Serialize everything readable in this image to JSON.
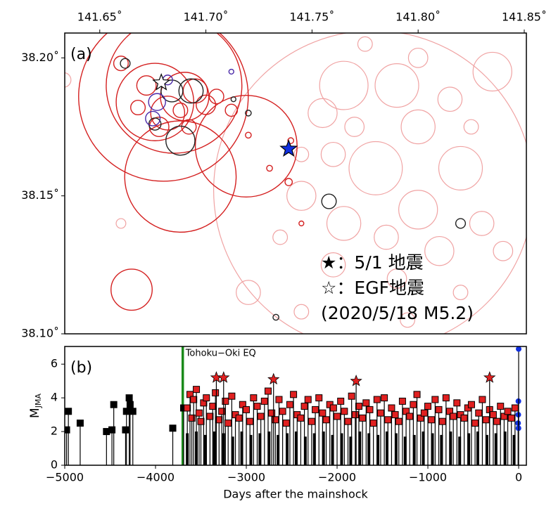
{
  "chart_data": [
    {
      "type": "map",
      "panel_label": "(a)",
      "xlim": [
        141.6335,
        141.851
      ],
      "ylim": [
        38.1,
        38.209
      ],
      "xticks": [
        {
          "value": 141.65,
          "label": "141.65˚"
        },
        {
          "value": 141.7,
          "label": "141.70˚"
        },
        {
          "value": 141.75,
          "label": "141.75˚"
        },
        {
          "value": 141.8,
          "label": "141.80˚"
        },
        {
          "value": 141.85,
          "label": "141.85˚"
        }
      ],
      "yticks": [
        {
          "value": 38.1,
          "label": "38.10˚"
        },
        {
          "value": 38.15,
          "label": "38.15˚"
        },
        {
          "value": 38.2,
          "label": "38.20˚"
        }
      ],
      "series": [
        {
          "color": "#f0a3a3",
          "x": [
            141.779,
            141.835,
            141.765,
            141.79,
            141.755,
            141.8,
            141.76,
            141.82,
            141.78,
            141.745,
            141.8,
            141.765,
            141.83,
            141.81,
            141.76,
            141.79,
            141.84,
            141.72,
            141.745,
            141.66,
            141.8,
            141.775,
            141.745,
            141.815,
            141.77,
            141.825,
            141.785,
            141.735,
            141.795,
            141.82,
            141.633
          ],
          "y": [
            38.152,
            38.195,
            38.19,
            38.19,
            38.18,
            38.175,
            38.165,
            38.16,
            38.16,
            38.15,
            38.145,
            38.14,
            38.14,
            38.13,
            38.125,
            38.12,
            38.13,
            38.115,
            38.108,
            38.14,
            38.2,
            38.205,
            38.165,
            38.185,
            38.175,
            38.175,
            38.135,
            38.135,
            38.105,
            38.115,
            38.192
          ],
          "sizes": [
            6.6,
            0.8,
            1.0,
            0.9,
            0.6,
            0.7,
            0.5,
            0.9,
            1.1,
            0.6,
            0.8,
            0.7,
            0.5,
            0.6,
            0.5,
            0.4,
            0.4,
            0.5,
            0.3,
            0.2,
            0.4,
            0.3,
            0.3,
            0.5,
            0.4,
            0.3,
            0.5,
            0.3,
            0.3,
            0.3,
            0.3
          ]
        },
        {
          "color": "#d42020",
          "x": [
            141.68,
            141.688,
            141.719,
            141.685,
            141.676,
            141.69,
            141.682,
            141.695,
            141.672,
            141.7,
            141.678,
            141.705,
            141.688,
            141.668,
            141.712,
            141.692,
            141.66,
            141.665,
            141.739,
            141.73,
            141.74,
            141.745,
            141.72
          ],
          "y": [
            38.186,
            38.157,
            38.168,
            38.19,
            38.184,
            38.186,
            38.18,
            38.188,
            38.19,
            38.183,
            38.175,
            38.186,
            38.181,
            38.182,
            38.181,
            38.175,
            38.198,
            38.116,
            38.155,
            38.16,
            38.17,
            38.14,
            38.172
          ],
          "sizes": [
            3.5,
            2.3,
            2.1,
            2.8,
            1.6,
            1.0,
            0.7,
            0.5,
            0.4,
            0.4,
            0.4,
            0.3,
            0.3,
            0.3,
            0.25,
            0.3,
            0.3,
            0.85,
            0.15,
            0.12,
            0.12,
            0.1,
            0.12
          ]
        },
        {
          "color": "#222222",
          "x": [
            141.688,
            141.684,
            141.693,
            141.662,
            141.713,
            141.676,
            141.72,
            141.82,
            141.733,
            141.758
          ],
          "y": [
            38.17,
            38.188,
            38.188,
            38.198,
            38.185,
            38.176,
            38.18,
            38.14,
            38.106,
            38.148
          ],
          "sizes": [
            0.6,
            0.45,
            0.5,
            0.2,
            0.1,
            0.25,
            0.12,
            0.2,
            0.12,
            0.3
          ]
        },
        {
          "color": "#4b2aa8",
          "x": [
            141.677,
            141.675,
            141.682,
            141.712
          ],
          "y": [
            38.184,
            38.178,
            38.192,
            38.195
          ],
          "sizes": [
            0.35,
            0.3,
            0.2,
            0.1
          ]
        }
      ],
      "stars": [
        {
          "x": 141.679,
          "y": 38.191,
          "color": "#ffffff"
        },
        {
          "x": 141.739,
          "y": 38.167,
          "color": "#1030e0"
        }
      ],
      "legend": [
        "★：5/1 地震",
        "☆：EGF地震",
        "(2020/5/18 M5.2)"
      ]
    },
    {
      "type": "stem",
      "panel_label": "(b)",
      "xlabel": "Days after the mainshock",
      "ylabel": "M",
      "ylabel_sub": "JMA",
      "xlim": [
        -5000,
        85
      ],
      "ylim": [
        0,
        7.05
      ],
      "xticks": [
        {
          "value": -5000,
          "label": "−5000"
        },
        {
          "value": -4000,
          "label": "−4000"
        },
        {
          "value": -3000,
          "label": "−3000"
        },
        {
          "value": -2000,
          "label": "−2000"
        },
        {
          "value": -1000,
          "label": "−1000"
        },
        0
      ],
      "yticks": [
        0,
        2,
        4,
        6
      ],
      "event": {
        "x": -3700,
        "label": "Tohoku−Oki EQ",
        "color": "#1a8a1a"
      },
      "series": [
        {
          "color": "#000000",
          "marker": "none",
          "x": [
            -3650,
            -3550,
            -3450,
            -3350,
            -3250,
            -3150,
            -3050,
            -2950,
            -2850,
            -2750,
            -2650,
            -2550,
            -2450,
            -2350,
            -2250,
            -2150,
            -2050,
            -1950,
            -1850,
            -1750,
            -1650,
            -1550,
            -1450,
            -1350,
            -1250,
            -1150,
            -1050,
            -950,
            -850,
            -750,
            -650,
            -550,
            -450,
            -350,
            -250,
            -150,
            -50
          ],
          "values": [
            1.9,
            2.0,
            1.8,
            2.0,
            1.9,
            1.7,
            2.0,
            1.8,
            1.9,
            2.0,
            1.8,
            1.9,
            2.0,
            1.7,
            1.9,
            2.0,
            1.8,
            1.9,
            1.7,
            2.0,
            1.9,
            1.8,
            2.0,
            1.9,
            1.7,
            1.8,
            2.0,
            1.9,
            1.8,
            2.0,
            1.7,
            1.9,
            2.0,
            1.8,
            1.9,
            2.0,
            1.8
          ]
        },
        {
          "color": "#000000",
          "marker": "square",
          "x": [
            -4980,
            -4960,
            -4830,
            -4540,
            -4480,
            -4460,
            -4330,
            -4320,
            -4290,
            -4280,
            -4250,
            -3810,
            -3690
          ],
          "values": [
            2.1,
            3.2,
            2.5,
            2.0,
            2.1,
            3.6,
            2.1,
            3.2,
            4.0,
            3.6,
            3.2,
            2.2,
            3.4
          ]
        },
        {
          "color": "#e02020",
          "marker": "square",
          "x": [
            -3650,
            -3620,
            -3600,
            -3580,
            -3550,
            -3520,
            -3500,
            -3470,
            -3440,
            -3400,
            -3370,
            -3340,
            -3300,
            -3270,
            -3230,
            -3200,
            -3160,
            -3120,
            -3080,
            -3040,
            -3000,
            -2960,
            -2920,
            -2880,
            -2840,
            -2800,
            -2760,
            -2720,
            -2680,
            -2640,
            -2600,
            -2560,
            -2520,
            -2480,
            -2440,
            -2400,
            -2360,
            -2320,
            -2280,
            -2240,
            -2200,
            -2160,
            -2120,
            -2080,
            -2040,
            -2000,
            -1960,
            -1920,
            -1880,
            -1840,
            -1800,
            -1760,
            -1720,
            -1680,
            -1640,
            -1600,
            -1560,
            -1520,
            -1480,
            -1440,
            -1400,
            -1360,
            -1320,
            -1280,
            -1240,
            -1200,
            -1160,
            -1120,
            -1080,
            -1040,
            -1000,
            -960,
            -920,
            -880,
            -840,
            -800,
            -760,
            -720,
            -680,
            -640,
            -600,
            -560,
            -520,
            -480,
            -440,
            -400,
            -360,
            -320,
            -280,
            -240,
            -200,
            -160,
            -120,
            -80,
            -40
          ],
          "values": [
            3.4,
            4.2,
            2.8,
            3.9,
            4.5,
            3.1,
            2.6,
            3.7,
            4.0,
            2.9,
            3.5,
            4.3,
            2.7,
            3.2,
            3.8,
            2.5,
            4.1,
            3.0,
            2.8,
            3.6,
            3.3,
            2.6,
            4.0,
            3.5,
            2.9,
            3.8,
            4.4,
            3.1,
            2.7,
            3.9,
            3.2,
            2.5,
            3.6,
            4.2,
            3.0,
            2.8,
            3.5,
            3.9,
            2.6,
            3.3,
            4.0,
            3.1,
            2.7,
            3.6,
            3.4,
            2.9,
            3.8,
            3.2,
            2.6,
            4.1,
            3.0,
            3.5,
            2.8,
            3.7,
            3.3,
            2.5,
            3.9,
            3.1,
            4.0,
            2.7,
            3.4,
            3.0,
            2.6,
            3.8,
            3.2,
            2.9,
            3.6,
            4.2,
            2.8,
            3.1,
            3.5,
            2.7,
            3.9,
            3.3,
            2.6,
            4.0,
            3.2,
            2.9,
            3.7,
            3.0,
            2.8,
            3.4,
            3.6,
            2.5,
            3.1,
            3.9,
            2.7,
            3.3,
            3.0,
            2.6,
            3.5,
            2.9,
            3.2,
            2.8,
            3.4
          ]
        },
        {
          "color": "#e02020",
          "marker": "star",
          "x": [
            -3330,
            -3250,
            -2700,
            -1790,
            -320
          ],
          "values": [
            5.2,
            5.2,
            5.1,
            5.0,
            5.2
          ]
        },
        {
          "color": "#1030e0",
          "marker": "circle",
          "x": [
            -6,
            -4,
            -3,
            -2,
            0
          ],
          "values": [
            2.5,
            3.0,
            3.8,
            2.2,
            6.9
          ]
        }
      ]
    }
  ]
}
